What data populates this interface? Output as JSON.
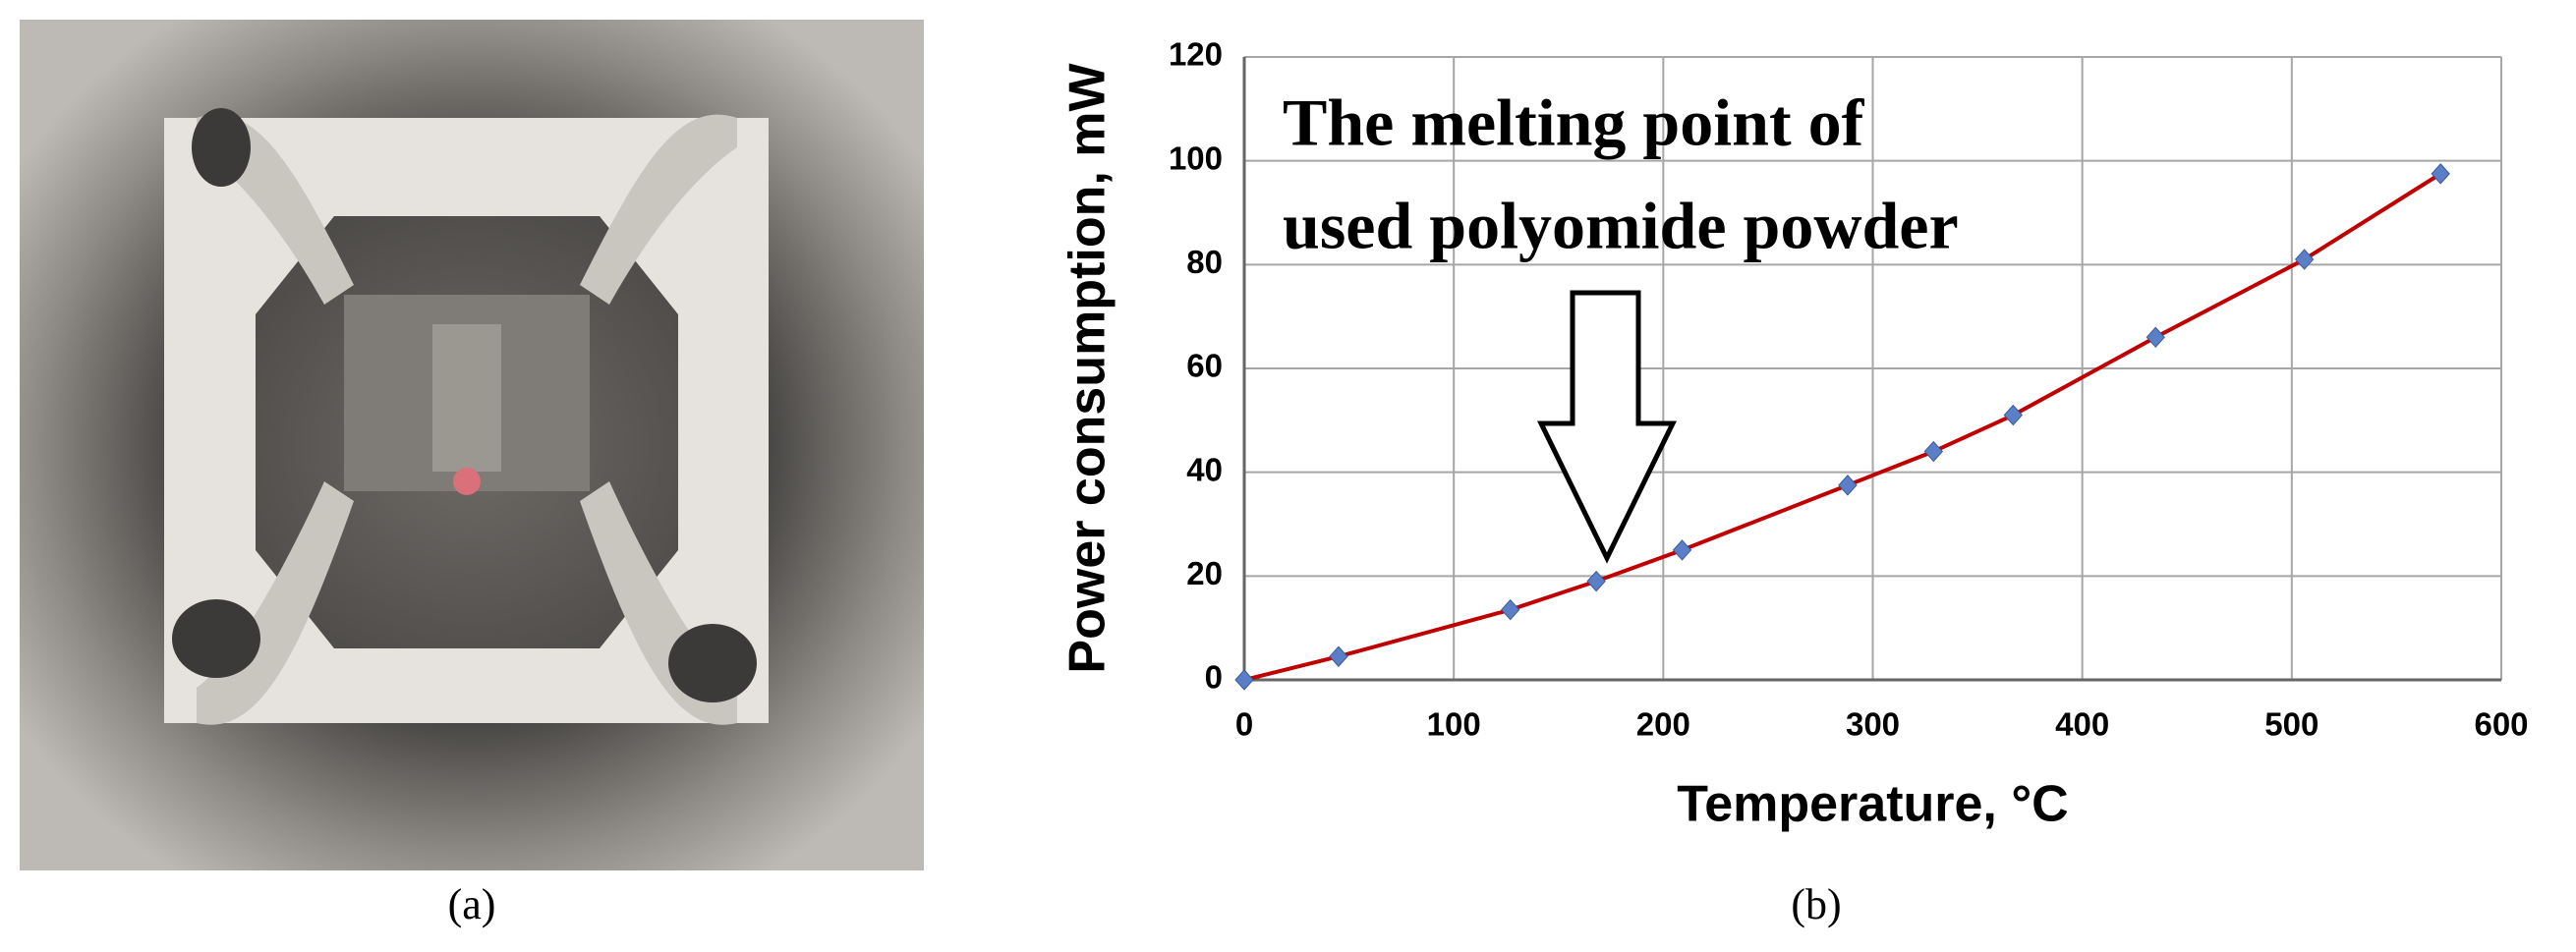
{
  "chart_data": {
    "type": "line",
    "x_label": "Temperature, °C",
    "y_label": "Power consumption, mW",
    "annotation": [
      "The melting point of",
      "used polyomide powder"
    ],
    "panel_labels": [
      "(a)",
      "(b)"
    ],
    "x": [
      0,
      45,
      127,
      168,
      209,
      288,
      329,
      367,
      435,
      506,
      571
    ],
    "series": [
      {
        "color": "#c00000",
        "marker_color": "#5b7fc7",
        "values": [
          0,
          4.5,
          13.5,
          19,
          25,
          37.5,
          44,
          51,
          66,
          81,
          97.5
        ]
      }
    ],
    "xlim": [
      0,
      600
    ],
    "xticks": [
      0,
      100,
      200,
      300,
      400,
      500,
      600
    ],
    "ylim": [
      0,
      120
    ],
    "yticks": [
      0,
      20,
      40,
      60,
      80,
      100,
      120
    ],
    "grid": true
  }
}
